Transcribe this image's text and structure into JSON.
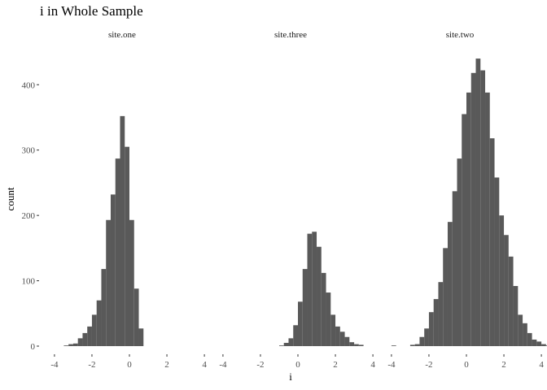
{
  "chart_data": {
    "type": "bar",
    "title": "i in Whole Sample",
    "xlabel": "i",
    "ylabel": "count",
    "ylim": [
      0,
      460
    ],
    "y_ticks": [
      0,
      100,
      200,
      300,
      400
    ],
    "grid": false,
    "bin_width": 0.25,
    "facets": [
      {
        "label": "site.one",
        "xlim": [
          -4.3,
          4.3
        ],
        "x_ticks": [
          -4,
          -2,
          0,
          2,
          4
        ],
        "bins_start": -3.5,
        "counts": [
          1,
          3,
          4,
          12,
          20,
          30,
          48,
          70,
          118,
          193,
          232,
          287,
          352,
          305,
          193,
          88,
          27
        ]
      },
      {
        "label": "site.three",
        "xlim": [
          -4.3,
          4.3
        ],
        "x_ticks": [
          -4,
          -2,
          0,
          2,
          4
        ],
        "bins_start": -1.0,
        "counts": [
          1,
          5,
          12,
          32,
          68,
          118,
          172,
          175,
          152,
          112,
          82,
          48,
          30,
          22,
          14,
          6,
          3,
          2
        ]
      },
      {
        "label": "site.two",
        "xlim": [
          -4.3,
          4.3
        ],
        "x_ticks": [
          -4,
          -2,
          0,
          2,
          4
        ],
        "bins_start": -4.0,
        "counts": [
          1,
          0,
          0,
          0,
          2,
          3,
          14,
          27,
          52,
          72,
          98,
          150,
          190,
          237,
          287,
          355,
          388,
          418,
          440,
          422,
          388,
          318,
          258,
          200,
          170,
          137,
          92,
          48,
          35,
          20,
          10,
          7,
          3,
          1
        ]
      }
    ]
  }
}
